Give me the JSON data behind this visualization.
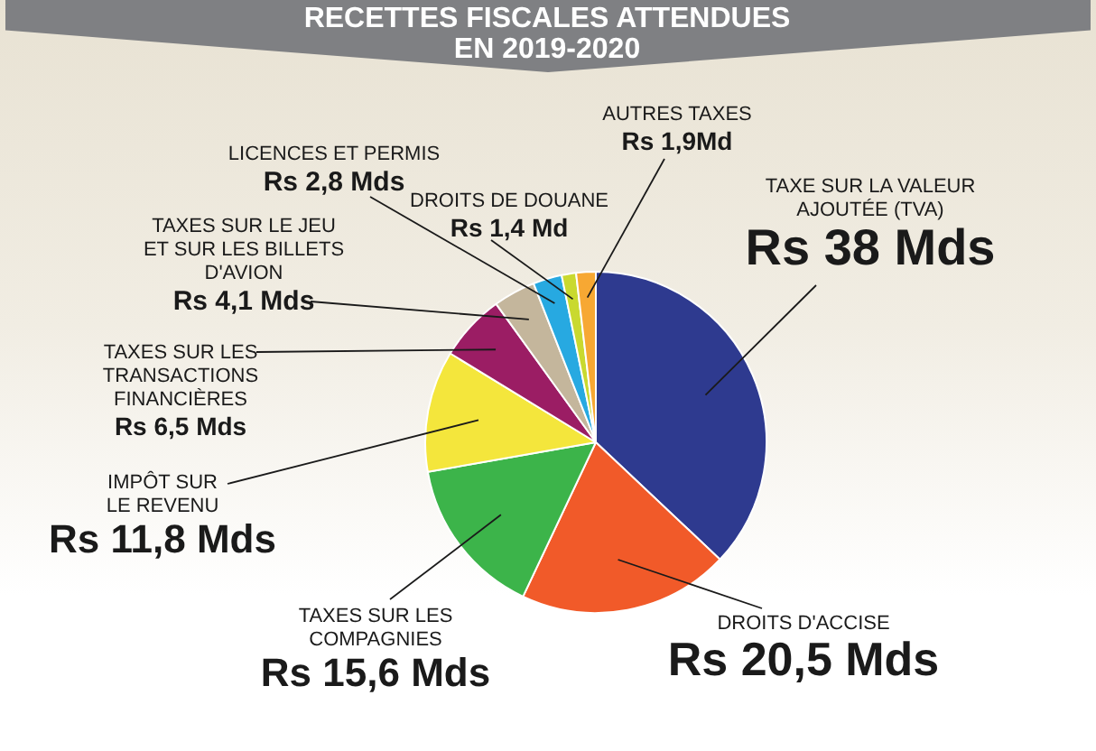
{
  "chart_data": {
    "type": "pie",
    "title": "RECETTES FISCALES ATTENDUES EN 2019-2020",
    "categories": [
      "TAXE SUR LA VALEUR AJOUTÉE (TVA)",
      "DROITS D'ACCISE",
      "TAXES SUR LES COMPAGNIES",
      "IMPÔT SUR LE REVENU",
      "TAXES SUR LES TRANSACTIONS FINANCIÈRES",
      "TAXES SUR LE JEU ET SUR LES BILLETS D'AVION",
      "LICENCES ET PERMIS",
      "DROITS DE DOUANE",
      "AUTRES TAXES"
    ],
    "values": [
      38,
      20.5,
      15.6,
      11.8,
      6.5,
      4.1,
      2.8,
      1.4,
      1.9
    ],
    "colors": [
      "#2e3a8f",
      "#f15a29",
      "#3cb44a",
      "#f4e63c",
      "#9b1d64",
      "#c4b69c",
      "#27a9e1",
      "#c9d92f",
      "#f7a833"
    ],
    "value_labels": [
      "Rs 38 Mds",
      "Rs 20,5 Mds",
      "Rs 15,6 Mds",
      "Rs 11,8 Mds",
      "Rs 6,5 Mds",
      "Rs 4,1 Mds",
      "Rs 2,8 Mds",
      "Rs 1,4 Md",
      "Rs 1,9Md"
    ],
    "legend": false
  }
}
